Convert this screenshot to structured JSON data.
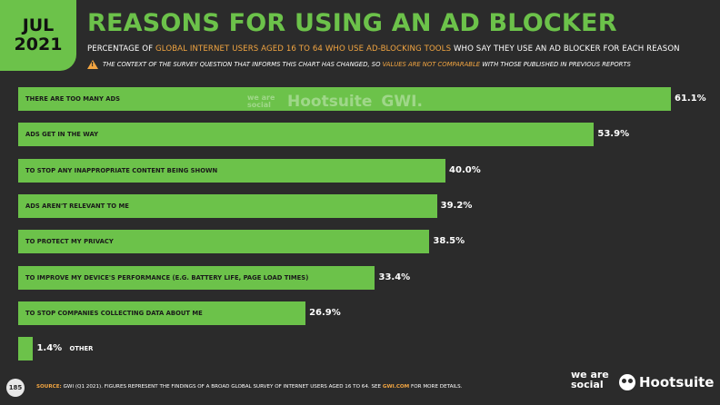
{
  "header": {
    "date_month": "JUL",
    "date_year": "2021",
    "title": "REASONS FOR USING AN AD BLOCKER",
    "subtitle_pre": "PERCENTAGE OF ",
    "subtitle_highlight": "GLOBAL INTERNET USERS AGED 16 TO 64 WHO USE AD-BLOCKING TOOLS",
    "subtitle_post": " WHO SAY THEY USE AN AD BLOCKER FOR EACH REASON",
    "note_pre": "THE CONTEXT OF THE SURVEY QUESTION THAT INFORMS THIS CHART HAS CHANGED, SO ",
    "note_highlight": "VALUES ARE NOT COMPARABLE",
    "note_post": " WITH THOSE PUBLISHED IN PREVIOUS REPORTS"
  },
  "chart_data": {
    "type": "bar",
    "orientation": "horizontal",
    "categories": [
      "THERE ARE TOO MANY ADS",
      "ADS GET IN THE WAY",
      "TO STOP ANY INAPPROPRIATE CONTENT BEING SHOWN",
      "ADS AREN'T RELEVANT TO ME",
      "TO PROTECT MY PRIVACY",
      "TO IMPROVE MY DEVICE'S PERFORMANCE (E.G. BATTERY LIFE, PAGE LOAD TIMES)",
      "TO STOP COMPANIES COLLECTING DATA ABOUT ME",
      "OTHER"
    ],
    "values": [
      61.1,
      53.9,
      40.0,
      39.2,
      38.5,
      33.4,
      26.9,
      1.4
    ],
    "value_labels": [
      "61.1%",
      "53.9%",
      "40.0%",
      "39.2%",
      "38.5%",
      "33.4%",
      "26.9%",
      "1.4%"
    ],
    "bar_color": "#6cc24a",
    "xlim": [
      0,
      61.1
    ]
  },
  "watermark": {
    "brand1": "we are social",
    "brand2": "Hootsuite",
    "brand3": "GWI."
  },
  "footer": {
    "page_number": "185",
    "source_label": "SOURCE:",
    "source_text": " GWI (Q1 2021). FIGURES REPRESENT THE FINDINGS OF A BROAD GLOBAL SURVEY OF INTERNET USERS AGED 16 TO 64. SEE ",
    "source_link": "GWI.COM",
    "source_post": " FOR MORE DETAILS.",
    "brand_was": "we are social",
    "brand_hootsuite": "Hootsuite"
  },
  "colors": {
    "accent": "#6cc24a",
    "highlight": "#f2a541",
    "background": "#2b2b2b"
  }
}
